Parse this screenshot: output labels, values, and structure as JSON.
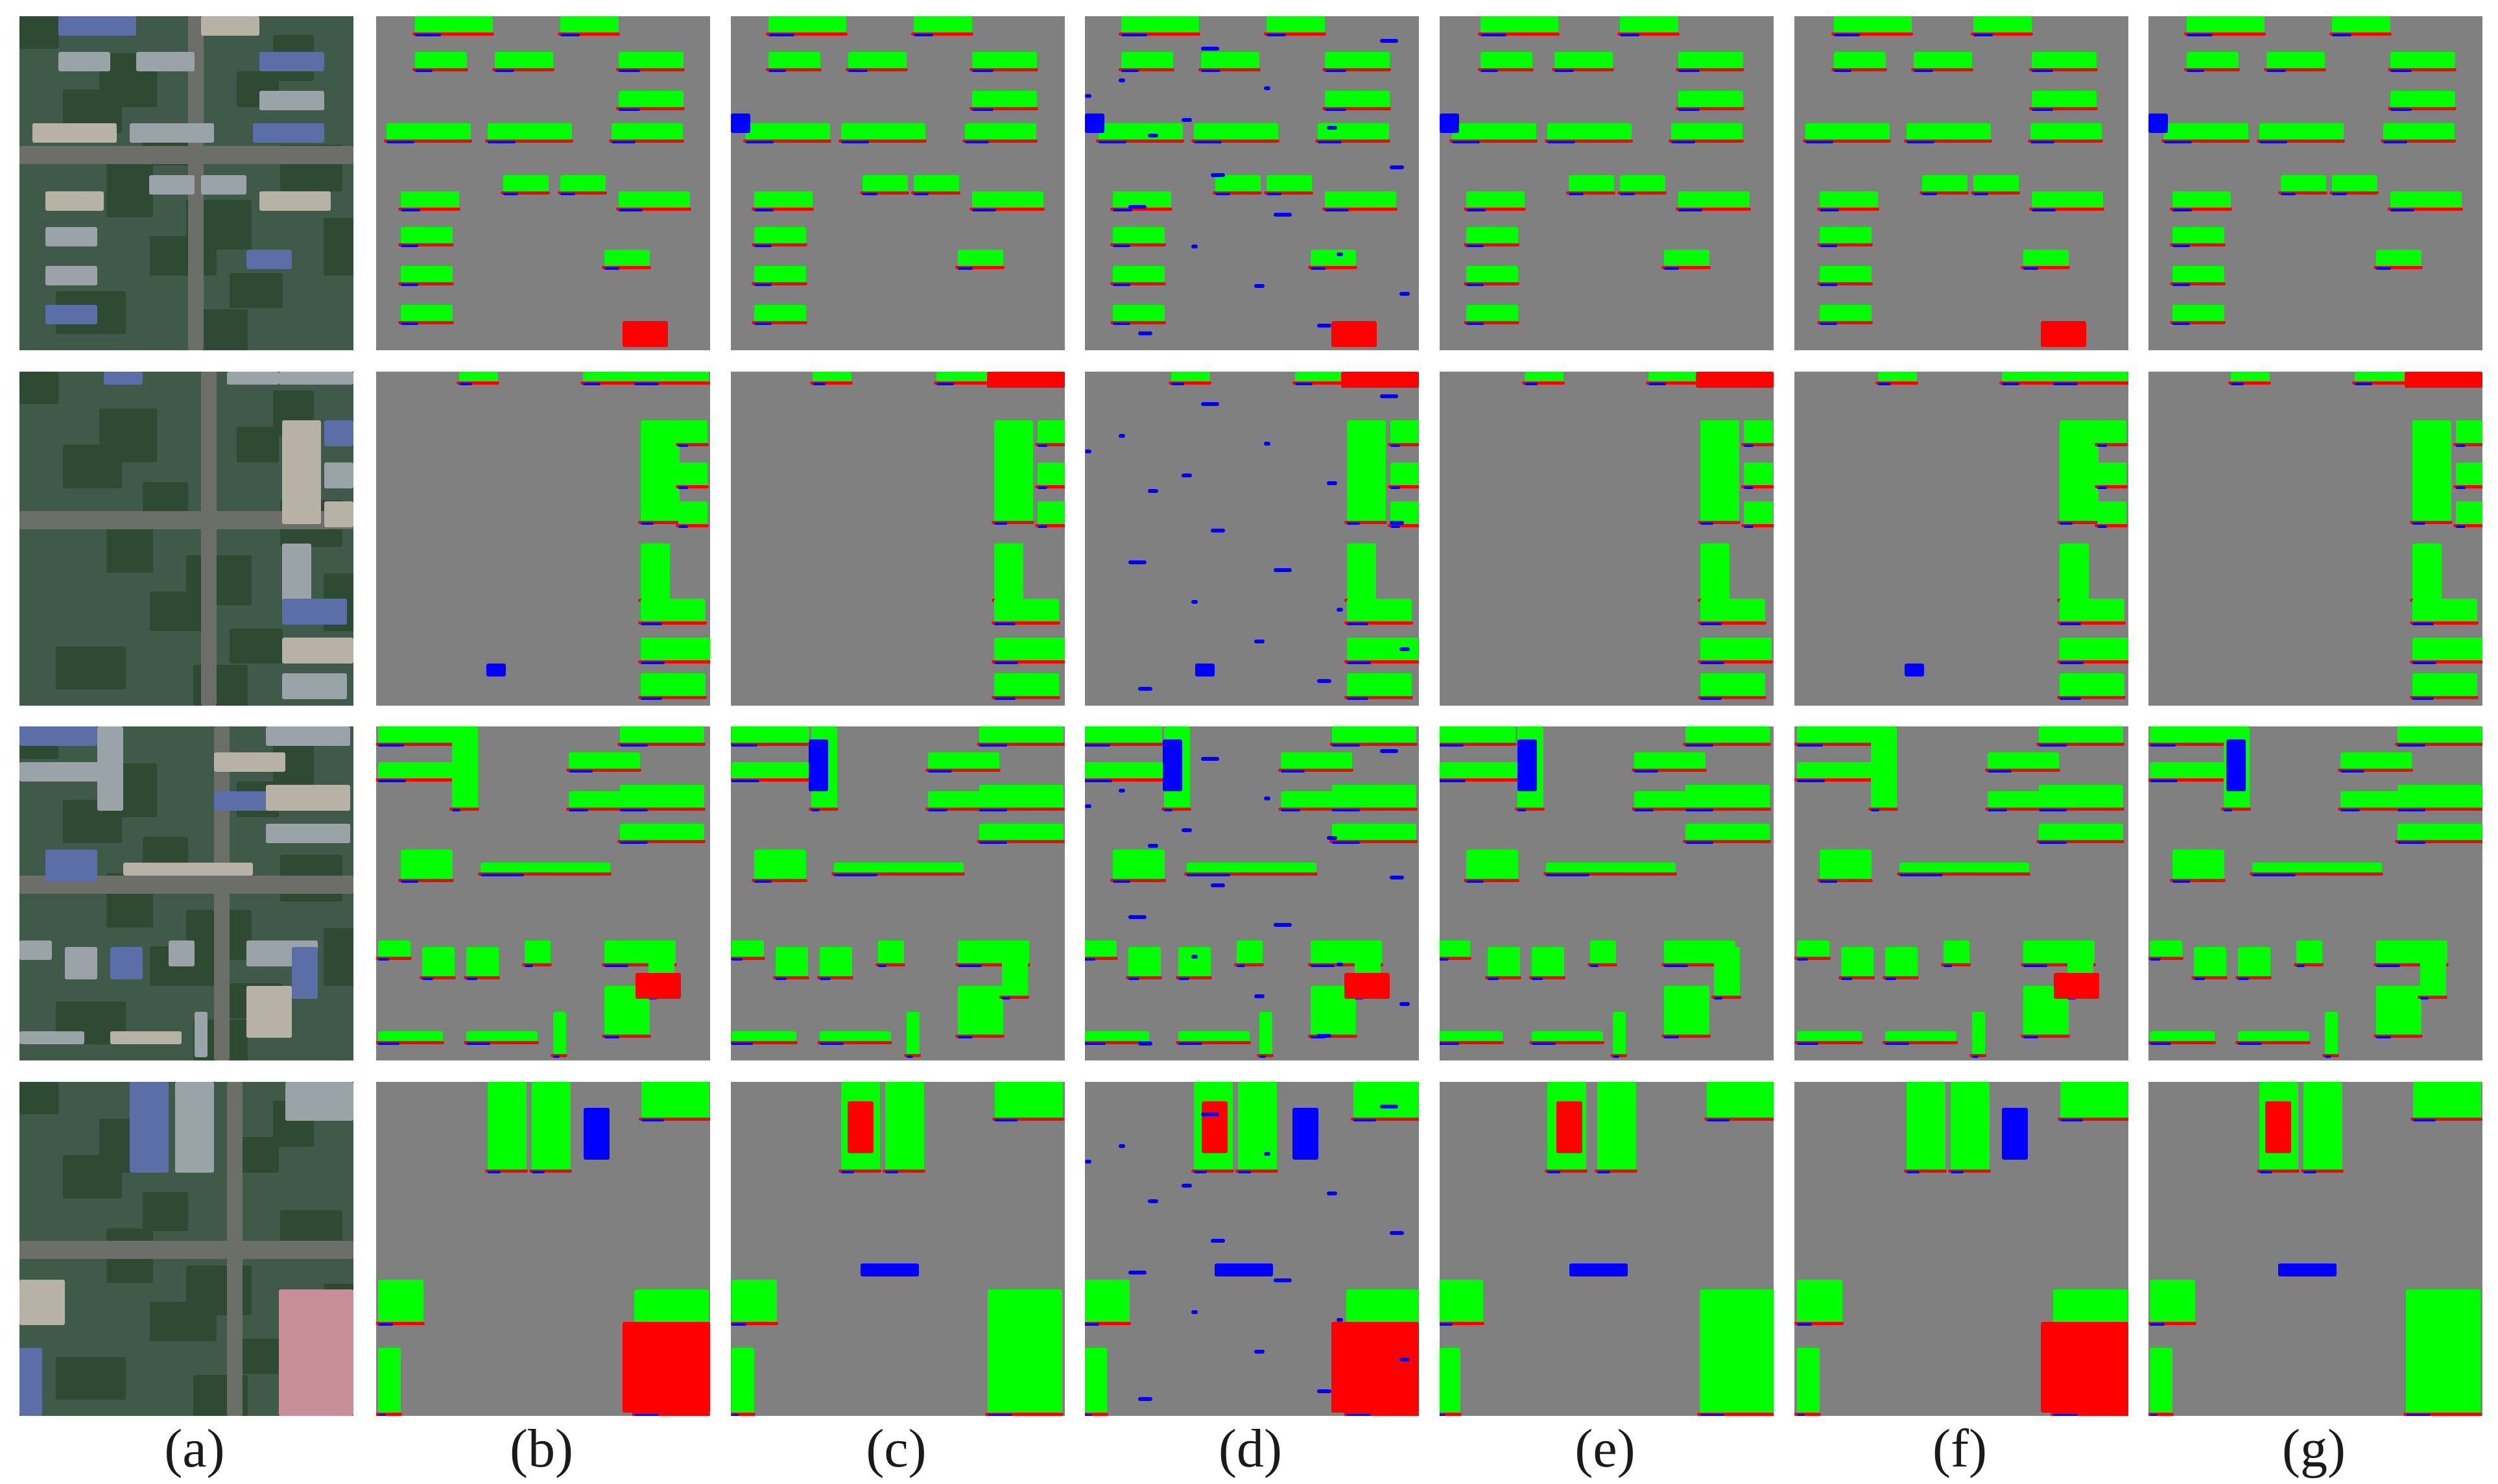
{
  "figure": {
    "columns": [
      {
        "label": "(a)",
        "kind": "aerial-image"
      },
      {
        "label": "(b)",
        "kind": "segmentation-map"
      },
      {
        "label": "(c)",
        "kind": "segmentation-map"
      },
      {
        "label": "(d)",
        "kind": "segmentation-map"
      },
      {
        "label": "(e)",
        "kind": "segmentation-map"
      },
      {
        "label": "(f)",
        "kind": "segmentation-map"
      },
      {
        "label": "(g)",
        "kind": "segmentation-map"
      }
    ],
    "rows": 4,
    "colors": {
      "background": "#808080",
      "correct": "#00ff00",
      "false_negative": "#ff0000",
      "false_positive": "#0000ff"
    }
  }
}
